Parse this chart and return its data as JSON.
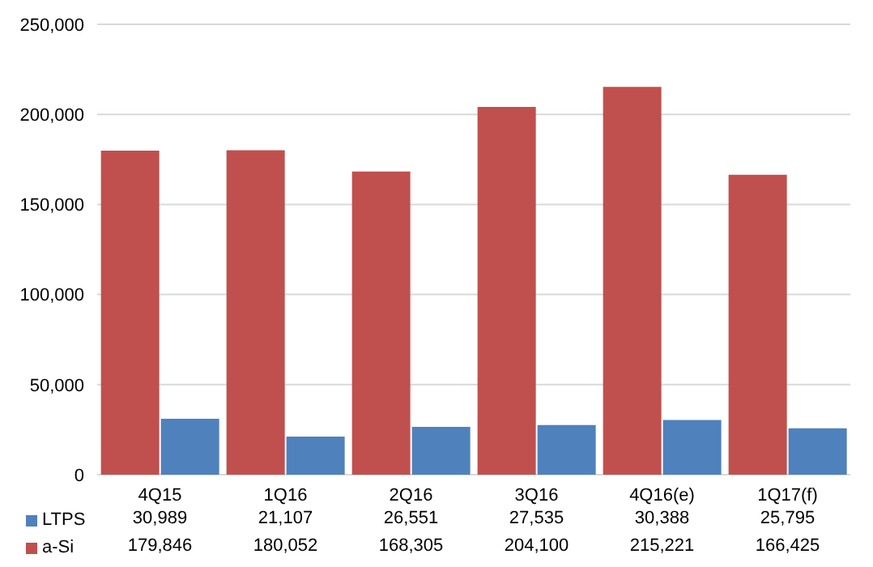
{
  "chart_data": {
    "type": "bar",
    "categories": [
      "4Q15",
      "1Q16",
      "2Q16",
      "3Q16",
      "4Q16(e)",
      "1Q17(f)"
    ],
    "series": [
      {
        "name": "LTPS",
        "color": "#4f81bd",
        "values": [
          30989,
          21107,
          26551,
          27535,
          30388,
          25795
        ],
        "value_labels": [
          "30,989",
          "21,107",
          "26,551",
          "27,535",
          "30,388",
          "25,795"
        ]
      },
      {
        "name": "a-Si",
        "color": "#c0504d",
        "values": [
          179846,
          180052,
          168305,
          204100,
          215221,
          166425
        ],
        "value_labels": [
          "179,846",
          "180,052",
          "168,305",
          "204,100",
          "215,221",
          "166,425"
        ]
      }
    ],
    "ylim": [
      0,
      250000
    ],
    "yticks": [
      {
        "value": 0,
        "label": "0"
      },
      {
        "value": 50000,
        "label": "50,000"
      },
      {
        "value": 100000,
        "label": "100,000"
      },
      {
        "value": 150000,
        "label": "150,000"
      },
      {
        "value": 200000,
        "label": "200,000"
      },
      {
        "value": 250000,
        "label": "250,000"
      }
    ],
    "grid": "y",
    "legend": "bottom"
  }
}
